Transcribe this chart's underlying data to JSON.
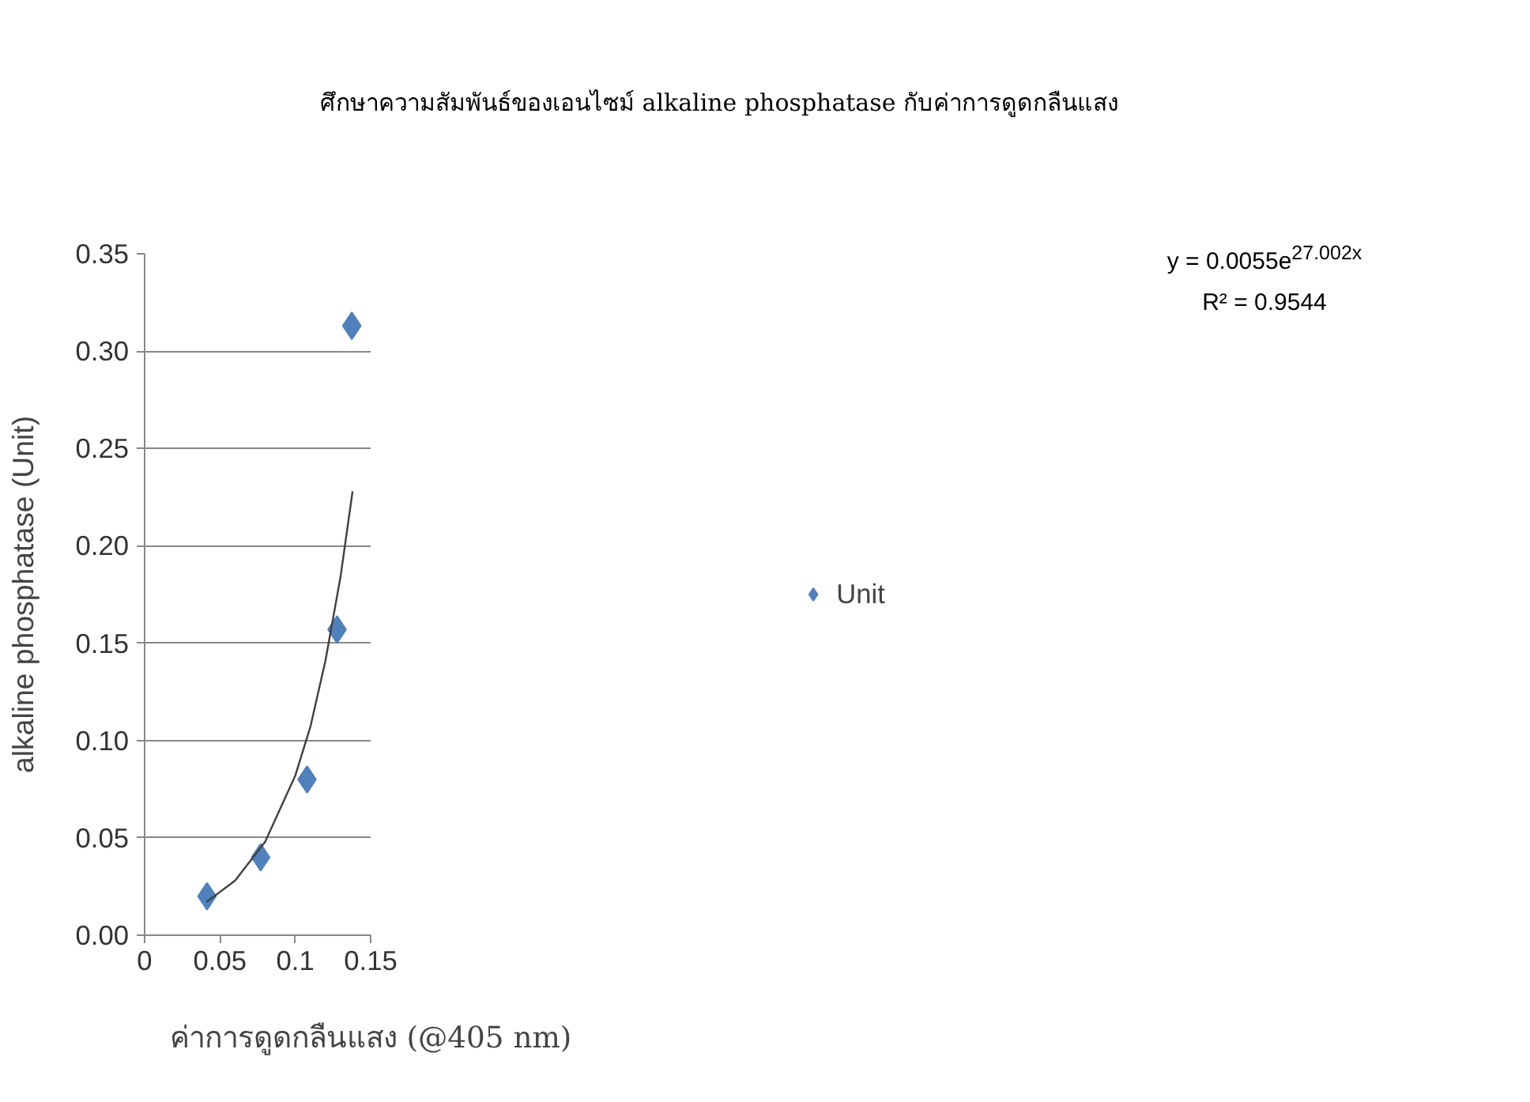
{
  "chart_data": {
    "type": "scatter",
    "title": "ศึกษาความสัมพันธ์ของเอนไซม์ alkaline phosphatase กับค่าการดูดกลืนแสง",
    "xlabel": "ค่าการดูดกลืนแสง (@405 nm)",
    "ylabel": "alkaline phosphatase (Unit)",
    "x": [
      0.0414,
      0.077,
      0.1078,
      0.1277,
      0.1375
    ],
    "series": [
      {
        "name": "Unit",
        "color": "#4f81bd",
        "values": [
          0.02,
          0.04,
          0.08,
          0.157,
          0.313
        ]
      },
      {
        "type": "line",
        "marker": "none",
        "color": "#404040",
        "x": [
          0.041,
          0.06,
          0.08,
          0.1,
          0.11,
          0.12,
          0.13,
          0.138
        ],
        "values": [
          0.017,
          0.028,
          0.048,
          0.082,
          0.107,
          0.141,
          0.184,
          0.228
        ]
      }
    ],
    "annotations": [
      "y = 0.0055e$^{27.002x}$",
      "R² = 0.9544"
    ],
    "xlim": [
      0,
      0.15
    ],
    "xticks": [
      0,
      0.05,
      0.1,
      0.15
    ],
    "ylim": [
      0,
      0.35
    ],
    "yticks": [
      {
        "value": 0,
        "label": "0.00"
      },
      {
        "value": 0.05,
        "label": "0.05"
      },
      {
        "value": 0.1,
        "label": "0.10"
      },
      {
        "value": 0.15,
        "label": "0.15"
      },
      {
        "value": 0.2,
        "label": "0.20"
      },
      {
        "value": 0.25,
        "label": "0.25"
      },
      {
        "value": 0.3,
        "label": "0.30"
      },
      {
        "value": 0.35,
        "label": "0.35"
      }
    ],
    "grid": "y",
    "legend": "right",
    "marker": "diamond"
  }
}
